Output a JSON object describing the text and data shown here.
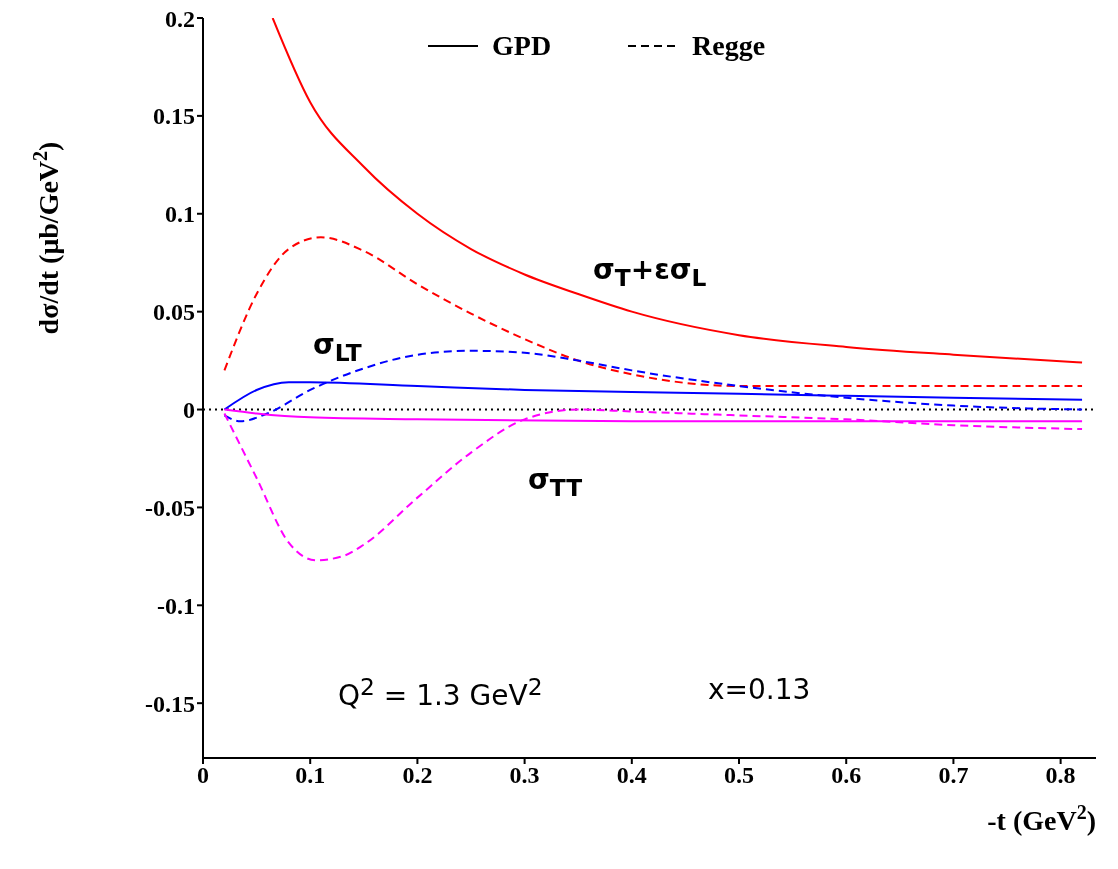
{
  "chart_data": {
    "type": "line",
    "xlabel": "-t (GeV$^{2}$)",
    "ylabel": "dσ/dt (μb/GeV$^{2}$)",
    "xlim": [
      0,
      0.833
    ],
    "xticks": [
      0,
      0.1,
      0.2,
      0.3,
      0.4,
      0.5,
      0.6,
      0.7,
      0.8
    ],
    "ylim": [
      -0.178,
      0.2
    ],
    "yticks": [
      -0.15,
      -0.1,
      -0.05,
      0,
      0.05,
      0.1,
      0.15,
      0.2
    ],
    "grid": false,
    "marker": "none",
    "ref_lines": [
      {
        "axis": "y",
        "value": 0,
        "color": "#000000",
        "line_style": "dotted"
      }
    ],
    "series": [
      {
        "color": "#ff0000",
        "line_style": "solid",
        "x": [
          0.065,
          0.1,
          0.15,
          0.2,
          0.25,
          0.3,
          0.35,
          0.4,
          0.5,
          0.6,
          0.7,
          0.82
        ],
        "values": [
          0.2,
          0.157,
          0.124,
          0.1,
          0.082,
          0.069,
          0.059,
          0.05,
          0.038,
          0.032,
          0.028,
          0.024
        ]
      },
      {
        "color": "#ff0000",
        "line_style": "dashed",
        "x": [
          0.02,
          0.05,
          0.08,
          0.11,
          0.15,
          0.2,
          0.25,
          0.3,
          0.35,
          0.4,
          0.5,
          0.6,
          0.82
        ],
        "values": [
          0.02,
          0.059,
          0.082,
          0.088,
          0.081,
          0.064,
          0.049,
          0.036,
          0.025,
          0.018,
          0.012,
          0.012,
          0.012
        ]
      },
      {
        "color": "#0000ff",
        "line_style": "solid",
        "x": [
          0.02,
          0.05,
          0.08,
          0.1,
          0.2,
          0.3,
          0.4,
          0.5,
          0.6,
          0.7,
          0.82
        ],
        "values": [
          0,
          0.01,
          0.014,
          0.014,
          0.012,
          0.01,
          0.009,
          0.008,
          0.007,
          0.006,
          0.005
        ]
      },
      {
        "color": "#0000ff",
        "line_style": "dashed",
        "x": [
          0.02,
          0.035,
          0.06,
          0.1,
          0.15,
          0.2,
          0.25,
          0.3,
          0.35,
          0.4,
          0.5,
          0.6,
          0.7,
          0.82
        ],
        "values": [
          -0.003,
          -0.006,
          -0.002,
          0.01,
          0.021,
          0.028,
          0.03,
          0.029,
          0.025,
          0.02,
          0.012,
          0.006,
          0.002,
          0
        ]
      },
      {
        "color": "#ff00ff",
        "line_style": "solid",
        "x": [
          0.02,
          0.05,
          0.1,
          0.2,
          0.4,
          0.6,
          0.82
        ],
        "values": [
          0,
          -0.002,
          -0.004,
          -0.005,
          -0.006,
          -0.006,
          -0.006
        ]
      },
      {
        "color": "#ff00ff",
        "line_style": "dashed",
        "x": [
          0.02,
          0.05,
          0.08,
          0.105,
          0.13,
          0.15,
          0.2,
          0.25,
          0.3,
          0.35,
          0.4,
          0.5,
          0.6,
          0.7,
          0.82
        ],
        "values": [
          -0.002,
          -0.035,
          -0.068,
          -0.077,
          -0.075,
          -0.069,
          -0.045,
          -0.022,
          -0.005,
          0,
          -0.001,
          -0.003,
          -0.005,
          -0.008,
          -0.01
        ]
      }
    ],
    "annotations": [
      "GPD",
      "Regge",
      "Q$^{2}$ = 1.3 GeV$^{2}$",
      "x=0.13",
      "σ$_{T}$+εσ$_{L}$",
      "σ$_{LT}$",
      "σ$_{TT}$"
    ]
  }
}
